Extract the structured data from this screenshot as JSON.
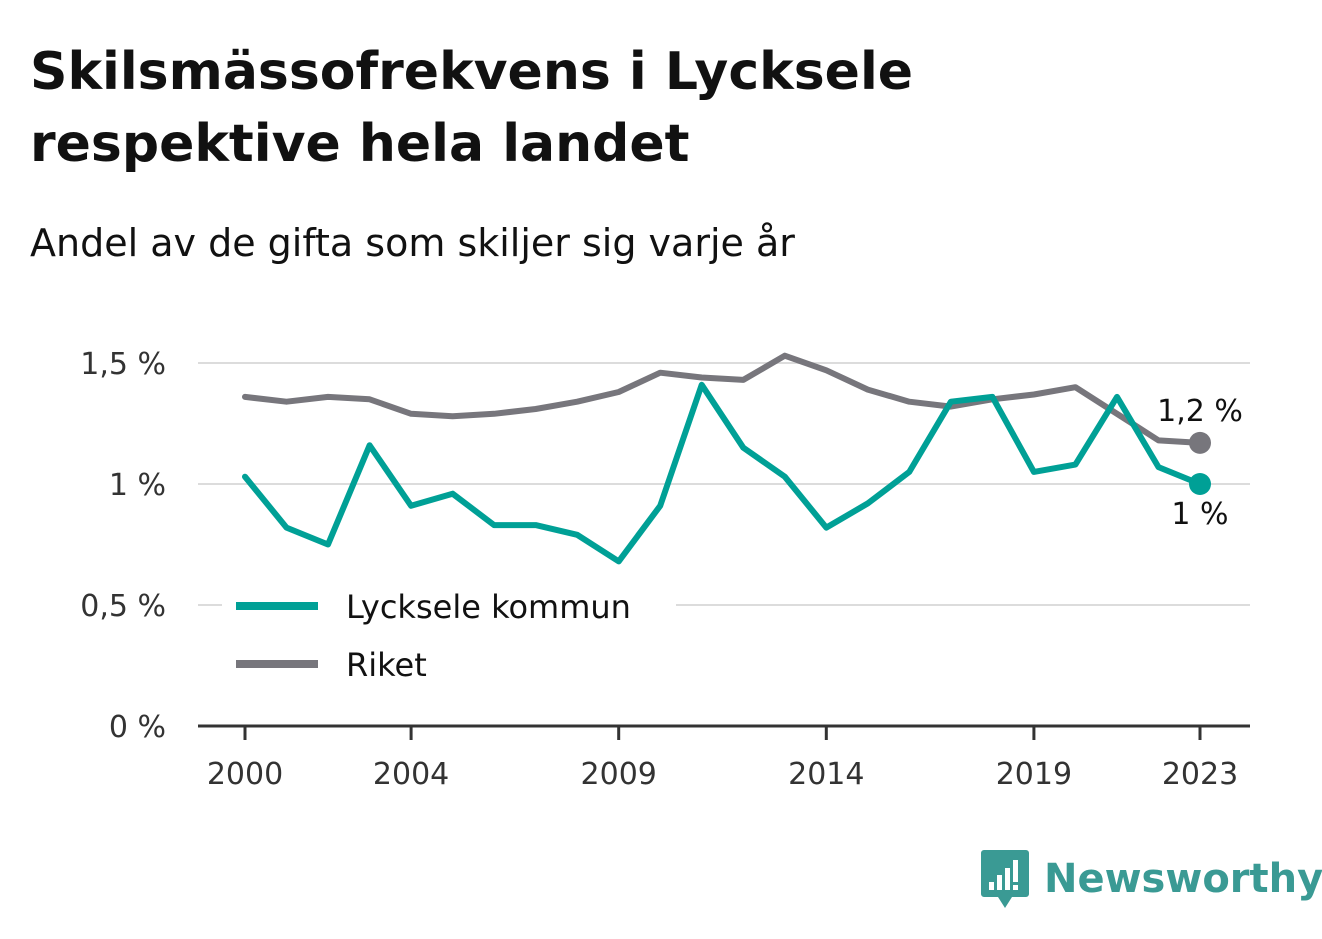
{
  "header": {
    "title": "Skilsmässofrekvens i Lycksele respektive hela landet",
    "subtitle": "Andel av de gifta som skiljer sig varje år"
  },
  "chart_data": {
    "type": "line",
    "x": [
      2000,
      2001,
      2002,
      2003,
      2004,
      2005,
      2006,
      2007,
      2008,
      2009,
      2010,
      2011,
      2012,
      2013,
      2014,
      2015,
      2016,
      2017,
      2018,
      2019,
      2020,
      2021,
      2022,
      2023
    ],
    "series": [
      {
        "name": "Lycksele kommun",
        "color": "#00a096",
        "values": [
          1.03,
          0.82,
          0.75,
          1.16,
          0.91,
          0.96,
          0.83,
          0.83,
          0.79,
          0.68,
          0.91,
          1.41,
          1.15,
          1.03,
          0.82,
          0.92,
          1.05,
          1.34,
          1.36,
          1.05,
          1.08,
          1.36,
          1.07,
          1.0
        ],
        "end_label": "1 %"
      },
      {
        "name": "Riket",
        "color": "#77767c",
        "values": [
          1.36,
          1.34,
          1.36,
          1.35,
          1.29,
          1.28,
          1.29,
          1.31,
          1.34,
          1.38,
          1.46,
          1.44,
          1.43,
          1.53,
          1.47,
          1.39,
          1.34,
          1.32,
          1.35,
          1.37,
          1.4,
          1.29,
          1.18,
          1.17
        ],
        "end_label": "1,2 %"
      }
    ],
    "y_ticks": [
      {
        "value": 0,
        "label": "0 %"
      },
      {
        "value": 0.5,
        "label": "0,5 %"
      },
      {
        "value": 1,
        "label": "1 %"
      },
      {
        "value": 1.5,
        "label": "1,5 %"
      }
    ],
    "x_ticks": [
      2000,
      2004,
      2009,
      2014,
      2019,
      2023
    ],
    "ylim": [
      0,
      1.5
    ],
    "xlim": [
      2000,
      2023
    ],
    "grid": true,
    "legend_position": "bottom-left"
  },
  "brand": {
    "name": "Newsworthy",
    "logo_icon": "newsworthy-logo-icon",
    "color": "#3a9a94"
  }
}
